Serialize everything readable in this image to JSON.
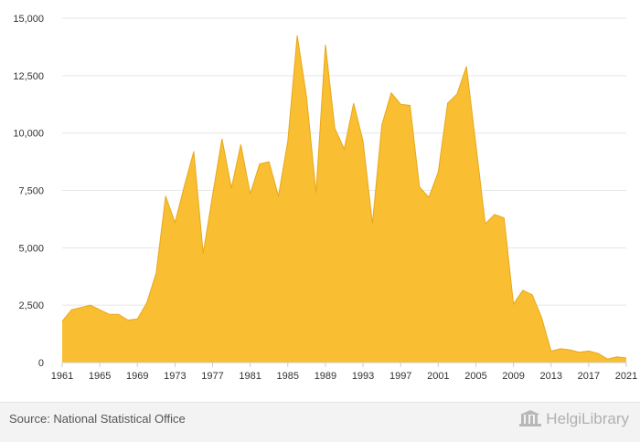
{
  "chart_data": {
    "type": "area",
    "title": "",
    "xlabel": "",
    "ylabel": "",
    "x": [
      1961,
      1962,
      1963,
      1964,
      1965,
      1966,
      1967,
      1968,
      1969,
      1970,
      1971,
      1972,
      1973,
      1974,
      1975,
      1976,
      1977,
      1978,
      1979,
      1980,
      1981,
      1982,
      1983,
      1984,
      1985,
      1986,
      1987,
      1988,
      1989,
      1990,
      1991,
      1992,
      1993,
      1994,
      1995,
      1996,
      1997,
      1998,
      1999,
      2000,
      2001,
      2002,
      2003,
      2004,
      2005,
      2006,
      2007,
      2008,
      2009,
      2010,
      2011,
      2012,
      2013,
      2014,
      2015,
      2016,
      2017,
      2018,
      2019,
      2020,
      2021
    ],
    "values": [
      1800,
      2300,
      2400,
      2500,
      2300,
      2100,
      2100,
      1850,
      1900,
      2600,
      3900,
      7250,
      6100,
      7700,
      9200,
      4750,
      7300,
      9750,
      7600,
      9500,
      7350,
      8650,
      8750,
      7250,
      9650,
      14250,
      11550,
      7400,
      13850,
      10200,
      9300,
      11300,
      9650,
      6050,
      10350,
      11750,
      11250,
      11200,
      7650,
      7200,
      8300,
      11300,
      11700,
      12900,
      9500,
      6050,
      6450,
      6300,
      2550,
      3150,
      2950,
      1950,
      500,
      600,
      550,
      450,
      500,
      400,
      150,
      250,
      200
    ],
    "xticks": [
      "1961",
      "1965",
      "1969",
      "1973",
      "1977",
      "1981",
      "1985",
      "1989",
      "1993",
      "1997",
      "2001",
      "2005",
      "2009",
      "2013",
      "2017",
      "2021"
    ],
    "yticks": [
      "0",
      "2,500",
      "5,000",
      "7,500",
      "10,000",
      "12,500",
      "15,000"
    ],
    "ylim": [
      0,
      15000
    ],
    "xlim": [
      1961,
      2021
    ],
    "grid": "horizontal",
    "legend": "none",
    "fill_color": "#F9BE31",
    "line_color": "#E7A81B",
    "grid_color": "#E6E6E6"
  },
  "footer": {
    "source": "Source: National Statistical Office",
    "brand": "HelgiLibrary",
    "brand_icon": "library-logo-icon"
  }
}
